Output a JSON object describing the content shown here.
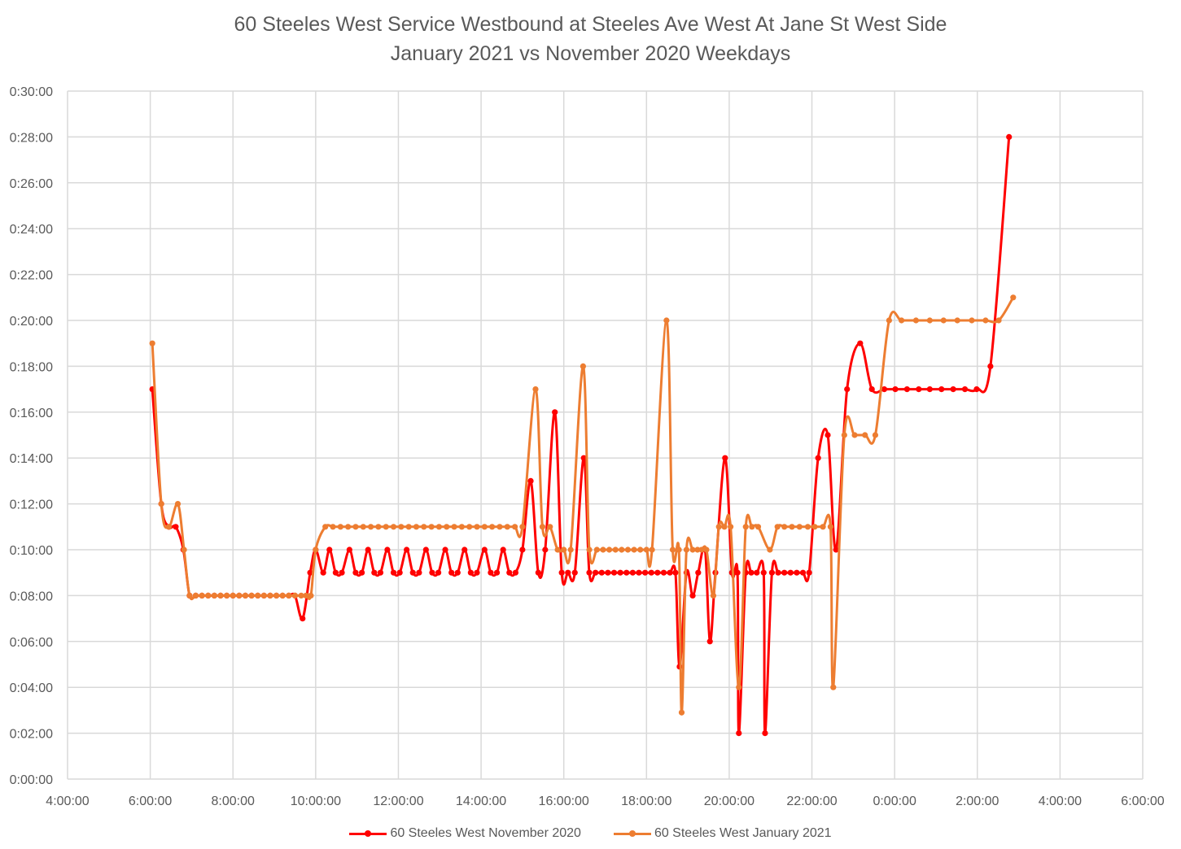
{
  "chart_data": {
    "type": "line",
    "title": "60 Steeles West Service Westbound at Steeles Ave West At Jane St West Side",
    "subtitle": "January 2021 vs November 2020 Weekdays",
    "xlabel": "",
    "ylabel": "",
    "xlim": [
      "4:00:00",
      "6:00:00"
    ],
    "ylim": [
      "0:00:00",
      "0:30:00"
    ],
    "x_ticks": [
      "4:00:00",
      "6:00:00",
      "8:00:00",
      "10:00:00",
      "12:00:00",
      "14:00:00",
      "16:00:00",
      "18:00:00",
      "20:00:00",
      "22:00:00",
      "0:00:00",
      "2:00:00",
      "4:00:00",
      "6:00:00"
    ],
    "y_ticks": [
      "0:00:00",
      "0:02:00",
      "0:04:00",
      "0:06:00",
      "0:08:00",
      "0:10:00",
      "0:12:00",
      "0:14:00",
      "0:16:00",
      "0:18:00",
      "0:20:00",
      "0:22:00",
      "0:24:00",
      "0:26:00",
      "0:28:00",
      "0:30:00"
    ],
    "grid": true,
    "legend": "bottom",
    "series": [
      {
        "name": "60 Steeles West November 2020",
        "color": "#FF0000",
        "points": [
          [
            "6:03",
            "0:17:00"
          ],
          [
            "6:16",
            "0:12:00"
          ],
          [
            "6:27",
            "0:11:00"
          ],
          [
            "6:37",
            "0:11:00"
          ],
          [
            "6:48",
            "0:10:00"
          ],
          [
            "6:57",
            "0:08:00"
          ],
          [
            "7:06",
            "0:08:00"
          ],
          [
            "7:15",
            "0:08:00"
          ],
          [
            "7:24",
            "0:08:00"
          ],
          [
            "7:33",
            "0:08:00"
          ],
          [
            "7:42",
            "0:08:00"
          ],
          [
            "7:51",
            "0:08:00"
          ],
          [
            "8:00",
            "0:08:00"
          ],
          [
            "8:09",
            "0:08:00"
          ],
          [
            "8:18",
            "0:08:00"
          ],
          [
            "8:27",
            "0:08:00"
          ],
          [
            "8:36",
            "0:08:00"
          ],
          [
            "8:45",
            "0:08:00"
          ],
          [
            "8:54",
            "0:08:00"
          ],
          [
            "9:03",
            "0:08:00"
          ],
          [
            "9:12",
            "0:08:00"
          ],
          [
            "9:21",
            "0:08:00"
          ],
          [
            "9:30",
            "0:08:00"
          ],
          [
            "9:41",
            "0:07:00"
          ],
          [
            "9:52",
            "0:09:00"
          ],
          [
            "10:00",
            "0:10:00"
          ],
          [
            "10:11",
            "0:09:00"
          ],
          [
            "10:20",
            "0:10:00"
          ],
          [
            "10:29",
            "0:09:00"
          ],
          [
            "10:38",
            "0:09:00"
          ],
          [
            "10:49",
            "0:10:00"
          ],
          [
            "10:58",
            "0:09:00"
          ],
          [
            "11:07",
            "0:09:00"
          ],
          [
            "11:16",
            "0:10:00"
          ],
          [
            "11:25",
            "0:09:00"
          ],
          [
            "11:34",
            "0:09:00"
          ],
          [
            "11:44",
            "0:10:00"
          ],
          [
            "11:53",
            "0:09:00"
          ],
          [
            "12:02",
            "0:09:00"
          ],
          [
            "12:12",
            "0:10:00"
          ],
          [
            "12:21",
            "0:09:00"
          ],
          [
            "12:30",
            "0:09:00"
          ],
          [
            "12:40",
            "0:10:00"
          ],
          [
            "12:49",
            "0:09:00"
          ],
          [
            "12:58",
            "0:09:00"
          ],
          [
            "13:08",
            "0:10:00"
          ],
          [
            "13:17",
            "0:09:00"
          ],
          [
            "13:26",
            "0:09:00"
          ],
          [
            "13:36",
            "0:10:00"
          ],
          [
            "13:45",
            "0:09:00"
          ],
          [
            "13:54",
            "0:09:00"
          ],
          [
            "14:05",
            "0:10:00"
          ],
          [
            "14:14",
            "0:09:00"
          ],
          [
            "14:23",
            "0:09:00"
          ],
          [
            "14:32",
            "0:10:00"
          ],
          [
            "14:41",
            "0:09:00"
          ],
          [
            "14:50",
            "0:09:00"
          ],
          [
            "15:00",
            "0:10:00"
          ],
          [
            "15:12",
            "0:13:00"
          ],
          [
            "15:23",
            "0:09:00"
          ],
          [
            "15:33",
            "0:10:00"
          ],
          [
            "15:47",
            "0:16:00"
          ],
          [
            "15:57",
            "0:09:00"
          ],
          [
            "16:06",
            "0:09:00"
          ],
          [
            "16:16",
            "0:09:00"
          ],
          [
            "16:29",
            "0:14:00"
          ],
          [
            "16:37",
            "0:09:00"
          ],
          [
            "16:46",
            "0:09:00"
          ],
          [
            "16:55",
            "0:09:00"
          ],
          [
            "17:04",
            "0:09:00"
          ],
          [
            "17:13",
            "0:09:00"
          ],
          [
            "17:22",
            "0:09:00"
          ],
          [
            "17:31",
            "0:09:00"
          ],
          [
            "17:40",
            "0:09:00"
          ],
          [
            "17:49",
            "0:09:00"
          ],
          [
            "17:58",
            "0:09:00"
          ],
          [
            "18:07",
            "0:09:00"
          ],
          [
            "18:16",
            "0:09:00"
          ],
          [
            "18:25",
            "0:09:00"
          ],
          [
            "18:34",
            "0:09:00"
          ],
          [
            "18:42",
            "0:09:00"
          ],
          [
            "18:48",
            "0:04:54"
          ],
          [
            "18:58",
            "0:09:00"
          ],
          [
            "19:07",
            "0:08:00"
          ],
          [
            "19:15",
            "0:09:00"
          ],
          [
            "19:25",
            "0:10:00"
          ],
          [
            "19:32",
            "0:06:00"
          ],
          [
            "19:40",
            "0:09:00"
          ],
          [
            "19:54",
            "0:14:00"
          ],
          [
            "20:04",
            "0:09:00"
          ],
          [
            "20:12",
            "0:09:00"
          ],
          [
            "20:14",
            "0:02:00"
          ],
          [
            "20:24",
            "0:09:00"
          ],
          [
            "20:32",
            "0:09:00"
          ],
          [
            "20:40",
            "0:09:00"
          ],
          [
            "20:50",
            "0:09:00"
          ],
          [
            "20:52",
            "0:02:00"
          ],
          [
            "21:02",
            "0:09:00"
          ],
          [
            "21:11",
            "0:09:00"
          ],
          [
            "21:20",
            "0:09:00"
          ],
          [
            "21:29",
            "0:09:00"
          ],
          [
            "21:38",
            "0:09:00"
          ],
          [
            "21:47",
            "0:09:00"
          ],
          [
            "21:56",
            "0:09:00"
          ],
          [
            "22:09",
            "0:14:00"
          ],
          [
            "22:23",
            "0:15:00"
          ],
          [
            "22:35",
            "0:10:00"
          ],
          [
            "22:51",
            "0:17:00"
          ],
          [
            "23:10",
            "0:19:00"
          ],
          [
            "23:27",
            "0:17:00"
          ],
          [
            "23:45",
            "0:17:00"
          ],
          [
            "0:01",
            "0:17:00"
          ],
          [
            "0:18",
            "0:17:00"
          ],
          [
            "0:35",
            "0:17:00"
          ],
          [
            "0:51",
            "0:17:00"
          ],
          [
            "1:08",
            "0:17:00"
          ],
          [
            "1:25",
            "0:17:00"
          ],
          [
            "1:42",
            "0:17:00"
          ],
          [
            "1:59",
            "0:17:00"
          ],
          [
            "2:19",
            "0:18:00"
          ],
          [
            "2:46",
            "0:28:00"
          ]
        ]
      },
      {
        "name": "60 Steeles West January 2021",
        "color": "#ED7D31",
        "points": [
          [
            "6:03",
            "0:19:00"
          ],
          [
            "6:16",
            "0:12:00"
          ],
          [
            "6:27",
            "0:11:00"
          ],
          [
            "6:40",
            "0:12:00"
          ],
          [
            "6:49",
            "0:10:00"
          ],
          [
            "6:57",
            "0:08:00"
          ],
          [
            "7:06",
            "0:08:00"
          ],
          [
            "7:15",
            "0:08:00"
          ],
          [
            "7:24",
            "0:08:00"
          ],
          [
            "7:33",
            "0:08:00"
          ],
          [
            "7:42",
            "0:08:00"
          ],
          [
            "7:51",
            "0:08:00"
          ],
          [
            "8:00",
            "0:08:00"
          ],
          [
            "8:09",
            "0:08:00"
          ],
          [
            "8:18",
            "0:08:00"
          ],
          [
            "8:27",
            "0:08:00"
          ],
          [
            "8:36",
            "0:08:00"
          ],
          [
            "8:45",
            "0:08:00"
          ],
          [
            "8:54",
            "0:08:00"
          ],
          [
            "9:03",
            "0:08:00"
          ],
          [
            "9:12",
            "0:08:00"
          ],
          [
            "9:21",
            "0:08:00"
          ],
          [
            "9:30",
            "0:08:00"
          ],
          [
            "9:39",
            "0:08:00"
          ],
          [
            "9:46",
            "0:08:00"
          ],
          [
            "9:53",
            "0:08:00"
          ],
          [
            "10:00",
            "0:10:00"
          ],
          [
            "10:14",
            "0:11:00"
          ],
          [
            "10:25",
            "0:11:00"
          ],
          [
            "10:36",
            "0:11:00"
          ],
          [
            "10:47",
            "0:11:00"
          ],
          [
            "10:58",
            "0:11:00"
          ],
          [
            "11:09",
            "0:11:00"
          ],
          [
            "11:20",
            "0:11:00"
          ],
          [
            "11:31",
            "0:11:00"
          ],
          [
            "11:42",
            "0:11:00"
          ],
          [
            "11:53",
            "0:11:00"
          ],
          [
            "12:04",
            "0:11:00"
          ],
          [
            "12:15",
            "0:11:00"
          ],
          [
            "12:26",
            "0:11:00"
          ],
          [
            "12:37",
            "0:11:00"
          ],
          [
            "12:48",
            "0:11:00"
          ],
          [
            "12:59",
            "0:11:00"
          ],
          [
            "13:10",
            "0:11:00"
          ],
          [
            "13:21",
            "0:11:00"
          ],
          [
            "13:32",
            "0:11:00"
          ],
          [
            "13:43",
            "0:11:00"
          ],
          [
            "13:54",
            "0:11:00"
          ],
          [
            "14:05",
            "0:11:00"
          ],
          [
            "14:16",
            "0:11:00"
          ],
          [
            "14:27",
            "0:11:00"
          ],
          [
            "14:38",
            "0:11:00"
          ],
          [
            "14:49",
            "0:11:00"
          ],
          [
            "15:00",
            "0:11:00"
          ],
          [
            "15:19",
            "0:17:00"
          ],
          [
            "15:29",
            "0:11:00"
          ],
          [
            "15:40",
            "0:11:00"
          ],
          [
            "15:51",
            "0:10:00"
          ],
          [
            "16:00",
            "0:10:00"
          ],
          [
            "16:10",
            "0:10:00"
          ],
          [
            "16:28",
            "0:18:00"
          ],
          [
            "16:37",
            "0:10:00"
          ],
          [
            "16:48",
            "0:10:00"
          ],
          [
            "16:57",
            "0:10:00"
          ],
          [
            "17:06",
            "0:10:00"
          ],
          [
            "17:15",
            "0:10:00"
          ],
          [
            "17:24",
            "0:10:00"
          ],
          [
            "17:33",
            "0:10:00"
          ],
          [
            "17:42",
            "0:10:00"
          ],
          [
            "17:51",
            "0:10:00"
          ],
          [
            "18:00",
            "0:10:00"
          ],
          [
            "18:08",
            "0:10:00"
          ],
          [
            "18:29",
            "0:20:00"
          ],
          [
            "18:38",
            "0:10:00"
          ],
          [
            "18:47",
            "0:10:00"
          ],
          [
            "18:51",
            "0:02:54"
          ],
          [
            "18:58",
            "0:10:00"
          ],
          [
            "19:07",
            "0:10:00"
          ],
          [
            "19:14",
            "0:10:00"
          ],
          [
            "19:20",
            "0:10:00"
          ],
          [
            "19:27",
            "0:10:00"
          ],
          [
            "19:37",
            "0:08:00"
          ],
          [
            "19:45",
            "0:11:00"
          ],
          [
            "19:53",
            "0:11:00"
          ],
          [
            "20:02",
            "0:11:00"
          ],
          [
            "20:14",
            "0:04:00"
          ],
          [
            "20:24",
            "0:11:00"
          ],
          [
            "20:33",
            "0:11:00"
          ],
          [
            "20:42",
            "0:11:00"
          ],
          [
            "20:59",
            "0:10:00"
          ],
          [
            "21:10",
            "0:11:00"
          ],
          [
            "21:20",
            "0:11:00"
          ],
          [
            "21:31",
            "0:11:00"
          ],
          [
            "21:42",
            "0:11:00"
          ],
          [
            "21:54",
            "0:11:00"
          ],
          [
            "22:04",
            "0:11:00"
          ],
          [
            "22:16",
            "0:11:00"
          ],
          [
            "22:27",
            "0:11:00"
          ],
          [
            "22:31",
            "0:04:00"
          ],
          [
            "22:47",
            "0:15:00"
          ],
          [
            "23:02",
            "0:15:00"
          ],
          [
            "23:17",
            "0:15:00"
          ],
          [
            "23:32",
            "0:15:00"
          ],
          [
            "23:52",
            "0:20:00"
          ],
          [
            "0:10",
            "0:20:00"
          ],
          [
            "0:31",
            "0:20:00"
          ],
          [
            "0:51",
            "0:20:00"
          ],
          [
            "1:11",
            "0:20:00"
          ],
          [
            "1:31",
            "0:20:00"
          ],
          [
            "1:52",
            "0:20:00"
          ],
          [
            "2:12",
            "0:20:00"
          ],
          [
            "2:31",
            "0:20:00"
          ],
          [
            "2:52",
            "0:21:00"
          ]
        ]
      }
    ]
  }
}
